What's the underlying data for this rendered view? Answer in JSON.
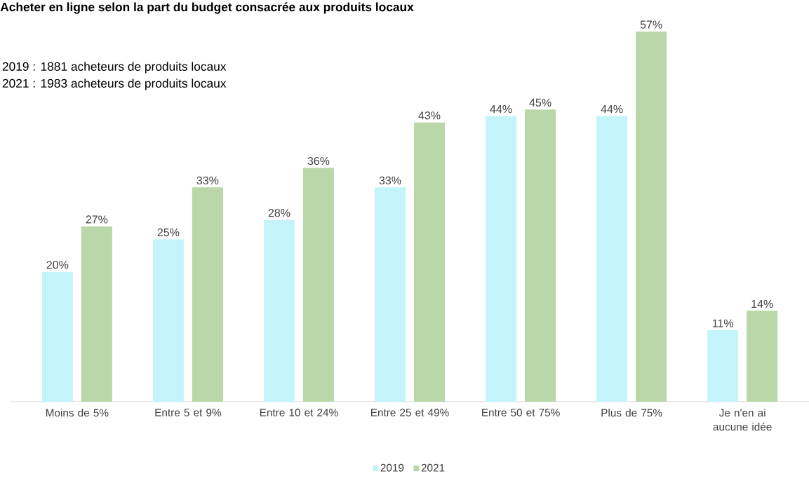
{
  "chart_data": {
    "type": "bar",
    "title": "Acheter en ligne selon la part du budget consacrée aux produits locaux",
    "annotations": [
      "2019 : 1881 acheteurs de produits locaux",
      "2021 : 1983 acheteurs de produits locaux"
    ],
    "categories": [
      "Moins de 5%",
      "Entre 5 et 9%",
      "Entre 10 et 24%",
      "Entre 25 et 49%",
      "Entre 50 et 75%",
      "Plus de 75%",
      "Je n'en ai aucune idée"
    ],
    "series": [
      {
        "name": "2019",
        "color": "#c4f4fb",
        "values": [
          20,
          25,
          28,
          33,
          44,
          44,
          11
        ],
        "value_labels": [
          "20%",
          "25%",
          "28%",
          "33%",
          "44%",
          "44%",
          "11%"
        ]
      },
      {
        "name": "2021",
        "color": "#b9d7a8",
        "values": [
          27,
          33,
          36,
          43,
          45,
          57,
          14
        ],
        "value_labels": [
          "27%",
          "33%",
          "36%",
          "43%",
          "45%",
          "57%",
          "14%"
        ]
      }
    ],
    "tick_labels": "x",
    "legend": "bottom"
  }
}
